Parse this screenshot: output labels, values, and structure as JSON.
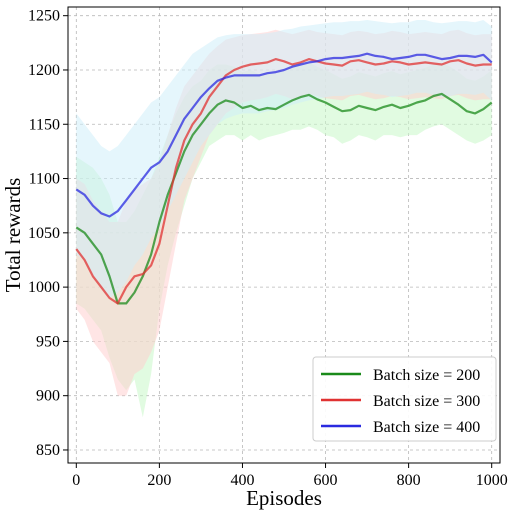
{
  "chart_data": {
    "type": "line",
    "xlabel": "Episodes",
    "ylabel": "Total rewards",
    "xlim": [
      -20,
      1020
    ],
    "ylim": [
      838,
      1258
    ],
    "xticks": [
      0,
      200,
      400,
      600,
      800,
      1000
    ],
    "yticks": [
      850,
      900,
      950,
      1000,
      1050,
      1100,
      1150,
      1200,
      1250
    ],
    "grid": true,
    "legend_position": "lower-right",
    "series": [
      {
        "name": "Batch size = 200",
        "color": "#1a8a1a",
        "band_color": "#c9f7c9",
        "x": [
          0,
          20,
          40,
          60,
          80,
          100,
          120,
          140,
          160,
          180,
          200,
          220,
          240,
          260,
          280,
          300,
          320,
          340,
          360,
          380,
          400,
          420,
          440,
          460,
          480,
          500,
          520,
          540,
          560,
          580,
          600,
          620,
          640,
          660,
          680,
          700,
          720,
          740,
          760,
          780,
          800,
          820,
          840,
          860,
          880,
          900,
          920,
          940,
          960,
          980,
          1000
        ],
        "values": [
          1055,
          1050,
          1040,
          1030,
          1010,
          985,
          985,
          995,
          1010,
          1030,
          1060,
          1085,
          1105,
          1125,
          1140,
          1150,
          1160,
          1168,
          1172,
          1170,
          1165,
          1167,
          1163,
          1165,
          1164,
          1168,
          1172,
          1175,
          1177,
          1173,
          1170,
          1166,
          1162,
          1163,
          1167,
          1165,
          1163,
          1166,
          1168,
          1165,
          1167,
          1170,
          1172,
          1176,
          1178,
          1173,
          1168,
          1162,
          1160,
          1164,
          1170
        ],
        "band_low": [
          985,
          980,
          970,
          960,
          935,
          915,
          905,
          915,
          880,
          920,
          980,
          1020,
          1050,
          1075,
          1100,
          1115,
          1130,
          1135,
          1140,
          1140,
          1135,
          1140,
          1135,
          1138,
          1140,
          1142,
          1145,
          1145,
          1148,
          1145,
          1140,
          1138,
          1132,
          1135,
          1140,
          1138,
          1135,
          1140,
          1140,
          1138,
          1140,
          1140,
          1145,
          1148,
          1150,
          1145,
          1140,
          1135,
          1132,
          1135,
          1140
        ],
        "band_high": [
          1120,
          1115,
          1110,
          1100,
          1085,
          1060,
          1060,
          1070,
          1085,
          1100,
          1120,
          1140,
          1160,
          1175,
          1185,
          1190,
          1200,
          1205,
          1205,
          1203,
          1198,
          1200,
          1196,
          1198,
          1197,
          1200,
          1203,
          1205,
          1207,
          1203,
          1200,
          1196,
          1192,
          1194,
          1198,
          1196,
          1194,
          1197,
          1199,
          1196,
          1198,
          1200,
          1202,
          1205,
          1207,
          1203,
          1198,
          1192,
          1190,
          1194,
          1200
        ]
      },
      {
        "name": "Batch size = 300",
        "color": "#e03232",
        "band_color": "#ffd0d0",
        "x": [
          0,
          20,
          40,
          60,
          80,
          100,
          120,
          140,
          160,
          180,
          200,
          220,
          240,
          260,
          280,
          300,
          320,
          340,
          360,
          380,
          400,
          420,
          440,
          460,
          480,
          500,
          520,
          540,
          560,
          580,
          600,
          620,
          640,
          660,
          680,
          700,
          720,
          740,
          760,
          780,
          800,
          820,
          840,
          860,
          880,
          900,
          920,
          940,
          960,
          980,
          1000
        ],
        "values": [
          1035,
          1025,
          1010,
          1000,
          990,
          985,
          1000,
          1010,
          1012,
          1020,
          1040,
          1075,
          1110,
          1135,
          1150,
          1160,
          1175,
          1185,
          1195,
          1200,
          1203,
          1205,
          1206,
          1207,
          1210,
          1208,
          1205,
          1207,
          1210,
          1208,
          1206,
          1205,
          1204,
          1208,
          1209,
          1207,
          1205,
          1206,
          1208,
          1207,
          1205,
          1206,
          1207,
          1206,
          1205,
          1208,
          1209,
          1206,
          1204,
          1205,
          1205
        ],
        "band_low": [
          980,
          970,
          950,
          940,
          930,
          900,
          900,
          920,
          925,
          940,
          960,
          1000,
          1040,
          1080,
          1100,
          1120,
          1140,
          1150,
          1160,
          1165,
          1170,
          1172,
          1173,
          1175,
          1178,
          1176,
          1173,
          1175,
          1178,
          1176,
          1174,
          1173,
          1172,
          1176,
          1177,
          1175,
          1173,
          1174,
          1176,
          1175,
          1173,
          1174,
          1175,
          1174,
          1173,
          1176,
          1177,
          1174,
          1172,
          1173,
          1173
        ],
        "band_high": [
          1100,
          1095,
          1080,
          1070,
          1060,
          1060,
          1080,
          1090,
          1095,
          1100,
          1115,
          1140,
          1165,
          1185,
          1195,
          1205,
          1215,
          1222,
          1228,
          1230,
          1232,
          1233,
          1234,
          1235,
          1237,
          1235,
          1233,
          1235,
          1237,
          1235,
          1234,
          1233,
          1232,
          1235,
          1236,
          1235,
          1233,
          1234,
          1236,
          1235,
          1233,
          1234,
          1235,
          1234,
          1233,
          1236,
          1237,
          1234,
          1232,
          1233,
          1233
        ]
      },
      {
        "name": "Batch size = 400",
        "color": "#2a2ae0",
        "band_color": "#d0eefa",
        "x": [
          0,
          20,
          40,
          60,
          80,
          100,
          120,
          140,
          160,
          180,
          200,
          220,
          240,
          260,
          280,
          300,
          320,
          340,
          360,
          380,
          400,
          420,
          440,
          460,
          480,
          500,
          520,
          540,
          560,
          580,
          600,
          620,
          640,
          660,
          680,
          700,
          720,
          740,
          760,
          780,
          800,
          820,
          840,
          860,
          880,
          900,
          920,
          940,
          960,
          980,
          1000
        ],
        "values": [
          1090,
          1085,
          1075,
          1068,
          1065,
          1070,
          1080,
          1090,
          1100,
          1110,
          1115,
          1125,
          1140,
          1155,
          1165,
          1175,
          1183,
          1190,
          1193,
          1195,
          1195,
          1195,
          1195,
          1197,
          1198,
          1200,
          1203,
          1205,
          1207,
          1208,
          1210,
          1211,
          1211,
          1212,
          1213,
          1215,
          1213,
          1212,
          1210,
          1211,
          1212,
          1214,
          1214,
          1212,
          1210,
          1211,
          1213,
          1213,
          1212,
          1214,
          1207
        ],
        "band_low": [
          1030,
          1025,
          1010,
          1000,
          990,
          995,
          1005,
          1020,
          1030,
          1045,
          1055,
          1070,
          1085,
          1100,
          1115,
          1130,
          1140,
          1150,
          1155,
          1158,
          1160,
          1160,
          1160,
          1162,
          1163,
          1165,
          1168,
          1170,
          1172,
          1173,
          1175,
          1176,
          1176,
          1177,
          1178,
          1180,
          1178,
          1177,
          1175,
          1176,
          1177,
          1179,
          1179,
          1177,
          1175,
          1176,
          1178,
          1178,
          1177,
          1179,
          1172
        ],
        "band_high": [
          1160,
          1150,
          1140,
          1130,
          1125,
          1130,
          1140,
          1150,
          1160,
          1170,
          1175,
          1185,
          1195,
          1205,
          1215,
          1220,
          1225,
          1230,
          1232,
          1233,
          1233,
          1233,
          1233,
          1234,
          1235,
          1237,
          1238,
          1240,
          1241,
          1242,
          1243,
          1244,
          1244,
          1245,
          1245,
          1246,
          1245,
          1244,
          1243,
          1244,
          1244,
          1246,
          1246,
          1244,
          1243,
          1244,
          1245,
          1245,
          1244,
          1246,
          1240
        ]
      }
    ]
  }
}
